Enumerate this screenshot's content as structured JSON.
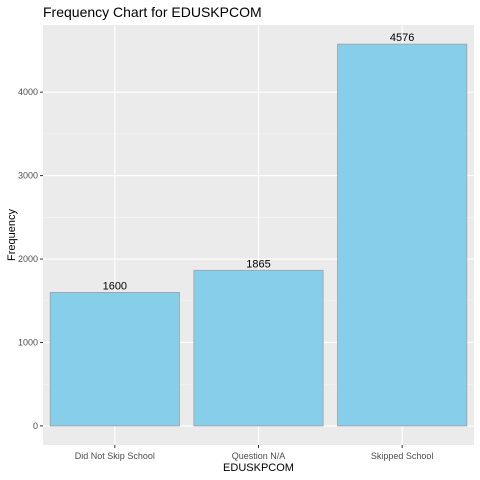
{
  "chart_data": {
    "type": "bar",
    "title": "Frequency Chart for EDUSKPCOM",
    "xlabel": "EDUSKPCOM",
    "ylabel": "Frequency",
    "categories": [
      "Did Not Skip School",
      "Question N/A",
      "Skipped School"
    ],
    "values": [
      1600,
      1865,
      4576
    ],
    "data_labels": [
      "1600",
      "1865",
      "4576"
    ],
    "yticks": [
      0,
      1000,
      2000,
      3000,
      4000
    ],
    "ytick_labels": [
      "0",
      "1000",
      "2000",
      "3000",
      "4000"
    ],
    "ylim": [
      -229,
      4805
    ],
    "grid": true,
    "legend": "none",
    "colors": {
      "bar_fill": "#87CEEB",
      "bar_stroke": "#a0a0a0",
      "panel_bg": "#ebebeb",
      "grid_major": "#ffffff",
      "grid_minor": "#f5f5f5"
    }
  }
}
